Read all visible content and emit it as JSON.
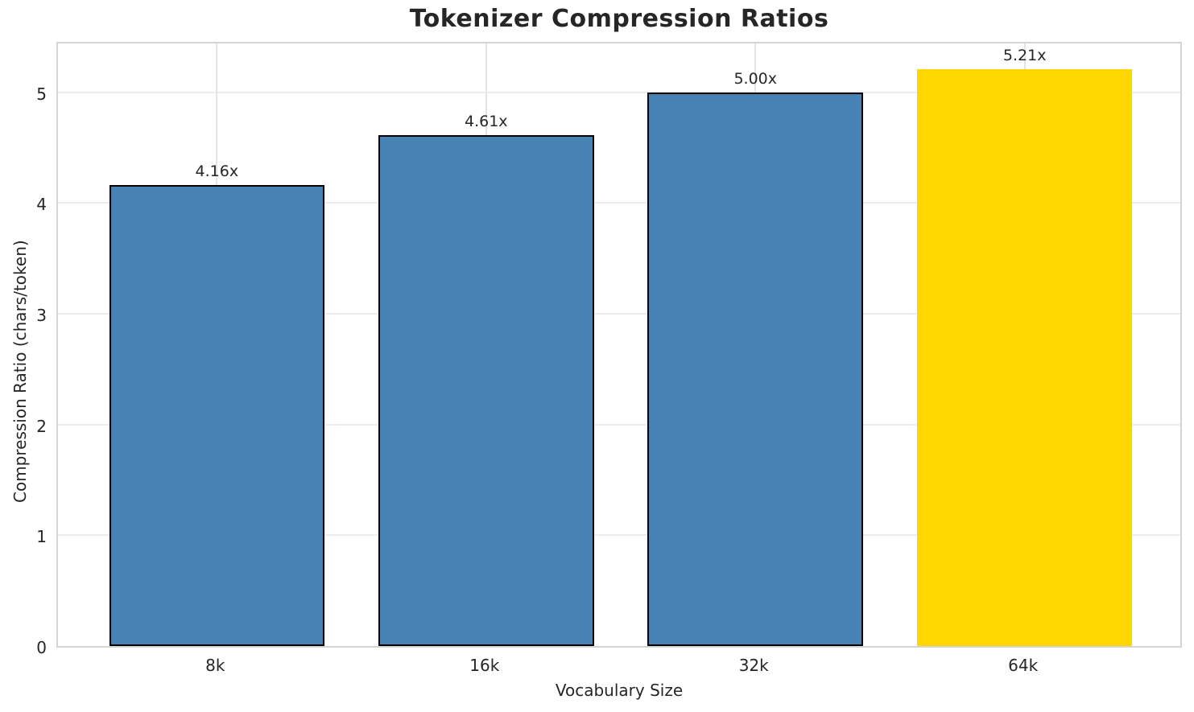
{
  "chart_data": {
    "type": "bar",
    "title": "Tokenizer Compression Ratios",
    "xlabel": "Vocabulary Size",
    "ylabel": "Compression Ratio (chars/token)",
    "categories": [
      "8k",
      "16k",
      "32k",
      "64k"
    ],
    "values": [
      4.16,
      4.61,
      5.0,
      5.21
    ],
    "bar_labels": [
      "4.16x",
      "4.61x",
      "5.00x",
      "5.21x"
    ],
    "bar_colors": [
      "#4682b4",
      "#4682b4",
      "#4682b4",
      "#ffd700"
    ],
    "bar_edge_colors": [
      "#000000",
      "#000000",
      "#000000",
      "none"
    ],
    "yticks": [
      0,
      1,
      2,
      3,
      4,
      5
    ],
    "ylim": [
      0,
      5.47
    ],
    "xlim": [
      -0.59,
      3.59
    ],
    "bar_width": 0.8,
    "grid": true,
    "legend": "none",
    "colors": {
      "default_bar": "#4682b4",
      "highlight_bar": "#ffd700",
      "bar_edge": "#000000",
      "grid": "#ededed",
      "spine": "#d4d4d4",
      "text": "#262626"
    }
  }
}
